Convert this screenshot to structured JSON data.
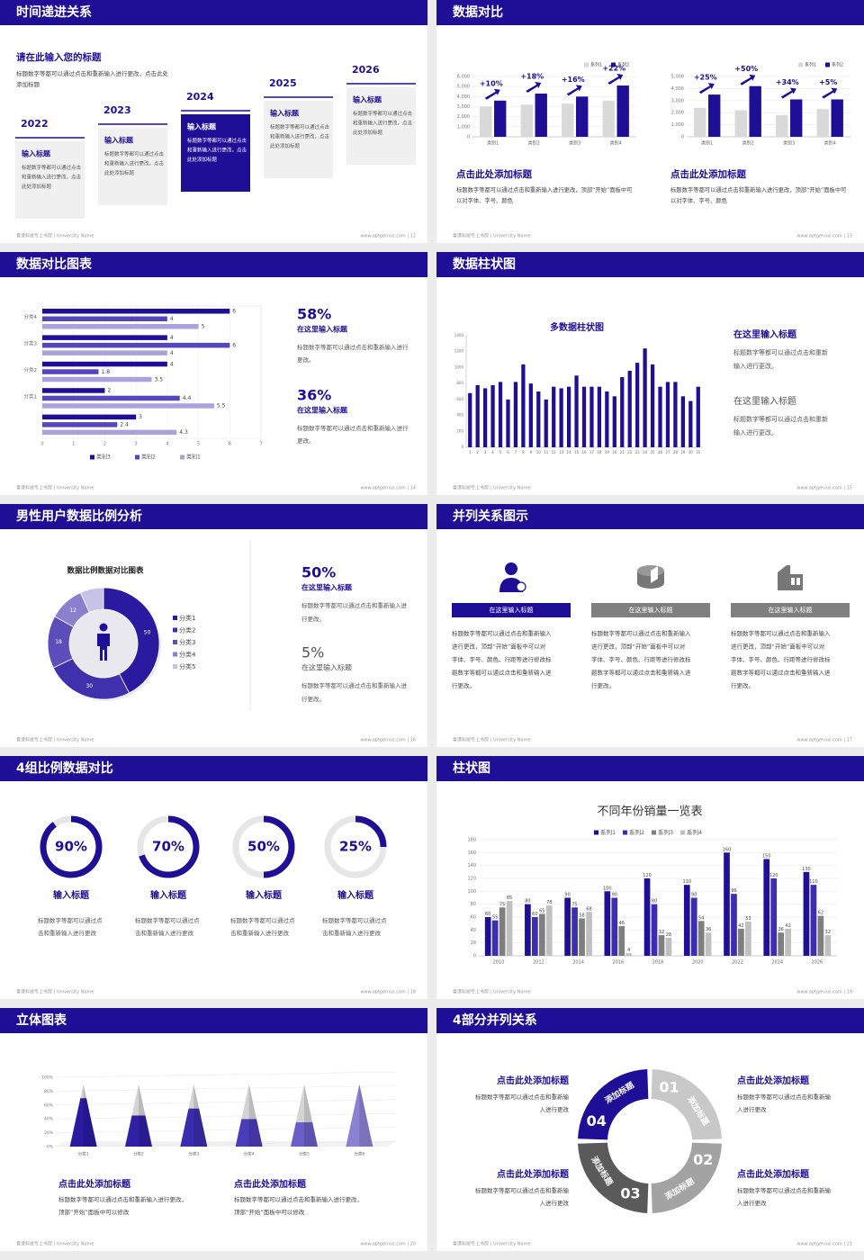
{
  "slides": [
    {
      "title": "时间递进关系",
      "heading": "请在此输入您的标题",
      "intro": "标题数字等都可以通过点击和重新输入进行更改，点击此处添加标题",
      "steps": [
        {
          "year": "2022",
          "label": "输入标题",
          "text": "标题数字等都可以通过点击和重新输入进行更改，点击此处添加标题"
        },
        {
          "year": "2023",
          "label": "输入标题",
          "text": "标题数字等都可以通过点击和重新输入进行更改，点击此处添加标题"
        },
        {
          "year": "2024",
          "label": "输入标题",
          "text": "标题数字等都可以通过点击和重新输入进行更改，点击此处添加标题"
        },
        {
          "year": "2025",
          "label": "输入标题",
          "text": "标题数字等都可以通过点击和重新输入进行更改，点击此处添加标题"
        },
        {
          "year": "2026",
          "label": "输入标题",
          "text": "标题数字等都可以通过点击和重新输入进行更改，点击此处添加标题"
        }
      ],
      "footer_left": "香港科技专上书院 | University Name",
      "footer_right": "www.aptgenius.com | 12"
    },
    {
      "title": "数据对比",
      "panels": [
        {
          "chart": {
            "type": "bar",
            "categories": [
              "类别1",
              "类别2",
              "类别3",
              "类别4"
            ],
            "series": [
              {
                "name": "系列1",
                "color": "#d9d9d9",
                "values": [
                  3000,
                  3200,
                  3300,
                  3600
                ]
              },
              {
                "name": "系列2",
                "color": "#1f0f96",
                "values": [
                  3600,
                  4300,
                  4000,
                  5100
                ]
              }
            ],
            "ylim": [
              0,
              6000
            ],
            "yticks": [
              0,
              {
                "value": 1000,
                "label": "1,000"
              },
              {
                "value": 2000,
                "label": "2,000"
              },
              {
                "value": 3000,
                "label": "3,000"
              },
              {
                "value": 4000,
                "label": "4,000"
              },
              {
                "value": 5000,
                "label": "5,000"
              },
              {
                "value": 6000,
                "label": "6,000"
              }
            ],
            "grid": true,
            "annotations": [
              "+10%",
              "+18%",
              "+16%",
              "+22%"
            ]
          },
          "heading": "点击此处添加标题",
          "text": "标题数字等都可以通过点击和重新输入进行更改，顶部“开始”面板中可以对字体、字号、颜色"
        },
        {
          "chart": {
            "type": "bar",
            "categories": [
              "类别1",
              "类别2",
              "类别3",
              "类别4"
            ],
            "series": [
              {
                "name": "系列1",
                "color": "#d9d9d9",
                "values": [
                  2400,
                  2200,
                  1800,
                  2300
                ]
              },
              {
                "name": "系列2",
                "color": "#1f0f96",
                "values": [
                  3500,
                  4200,
                  3100,
                  3100
                ]
              }
            ],
            "ylim": [
              0,
              5000
            ],
            "yticks": [
              0,
              {
                "value": 1000,
                "label": "1,000"
              },
              {
                "value": 2000,
                "label": "2,000"
              },
              {
                "value": 3000,
                "label": "3,000"
              },
              {
                "value": 4000,
                "label": "4,000"
              },
              {
                "value": 5000,
                "label": "5,000"
              }
            ],
            "grid": true,
            "annotations": [
              "+25%",
              "+50%",
              "+34%",
              "+5%"
            ]
          },
          "heading": "点击此处添加标题",
          "text": "标题数字等都可以通过点击和重新输入进行更改，顶部“开始”面板中可以对字体、字号、颜色"
        }
      ],
      "footer_left": "香港科技专上书院 | University Name",
      "footer_right": "www.aptgenius.com | 13"
    },
    {
      "title": "数据对比图表",
      "chart": {
        "type": "hbar",
        "categories": [
          "分类4",
          "分类3",
          "分类2",
          "分类1",
          null
        ],
        "series": [
          {
            "name": "类别3",
            "color": "#1f0f96",
            "values": [
              6,
              4,
              4,
              2,
              3
            ]
          },
          {
            "name": "类别2",
            "color": "#5446be",
            "values": [
              4,
              6,
              1.8,
              4.4,
              2.4
            ]
          },
          {
            "name": "类别1",
            "color": "#aaa2dc",
            "values": [
              5,
              4,
              3.5,
              5.5,
              4.3
            ]
          }
        ],
        "xlim": [
          0,
          7
        ],
        "xticks": [
          0,
          1,
          2,
          3,
          4,
          5,
          6,
          7
        ],
        "grid": true,
        "data_labels": true
      },
      "stats": [
        {
          "value": "58%",
          "label": "在这里输入标题",
          "text": "标题数字等都可以通过点击和重新输入进行更改。"
        },
        {
          "value": "36%",
          "label": "在这里输入标题",
          "text": "标题数字等都可以通过点击和重新输入进行更改。"
        }
      ],
      "footer_left": "香港科技专上书院 | University Name",
      "footer_right": "www.aptgenius.com | 14"
    },
    {
      "title": "数据柱状图",
      "chart": {
        "type": "bar",
        "title": "多数据柱状图",
        "color": "#1f0f96",
        "categories": [
          "1",
          "2",
          "3",
          "4",
          "5",
          "6",
          "7",
          "8",
          "9",
          "10",
          "11",
          "12",
          "13",
          "14",
          "15",
          "16",
          "17",
          "18",
          "19",
          "20",
          "21",
          "22",
          "23",
          "24",
          "25",
          "26",
          "27",
          "28",
          "29",
          "30",
          "31"
        ],
        "values": [
          680,
          780,
          740,
          780,
          820,
          600,
          820,
          1040,
          800,
          700,
          600,
          760,
          740,
          760,
          900,
          760,
          760,
          760,
          700,
          640,
          880,
          960,
          1060,
          1240,
          1040,
          760,
          820,
          820,
          640,
          580,
          760
        ],
        "ylim": [
          0,
          1400
        ],
        "yticks": [
          0,
          200,
          400,
          600,
          800,
          1000,
          1200,
          1400
        ],
        "grid": false
      },
      "blocks": [
        {
          "label": "在这里输入标题",
          "text": "标题数字等都可以通过点击和重新输入进行更改。"
        },
        {
          "label": "在这里输入标题",
          "text": "标题数字等都可以通过点击和重新输入进行更改。"
        }
      ],
      "footer_left": "香港科技专上书院 | University Name",
      "footer_right": "www.aptgenius.com | 15"
    },
    {
      "title": "男性用户数据比例分析",
      "chart": {
        "type": "donut",
        "title": "数据比例数据对比图表",
        "categories": [
          "分类1",
          "分类2",
          "分类3",
          "分类4",
          "分类5"
        ],
        "values": [
          50,
          30,
          18,
          12,
          8
        ],
        "colors": [
          "#2a1aa0",
          "#3f30ac",
          "#5b4dba",
          "#8a80cd",
          "#c6c1e7"
        ]
      },
      "stats": [
        {
          "value": "50%",
          "label": "在这里输入标题",
          "text": "标题数字等都可以通过点击和重新输入进行更改。"
        },
        {
          "value": "5%",
          "label": "在这里输入标题",
          "text": "标题数字等都可以通过点击和重新输入进行更改。"
        }
      ],
      "footer_left": "香港科技专上书院 | University Name",
      "footer_right": "www.aptgenius.com | 16"
    },
    {
      "title": "并列关系图示",
      "columns": [
        {
          "label": "在这里输入标题",
          "text": "标题数字等都可以通过点击和重新输入进行更改，顶部“开始”面板中可以对字体、字号、颜色、行距等进行修改标题数字等都可以通过点击和重新输入进行更改。"
        },
        {
          "label": "在这里输入标题",
          "text": "标题数字等都可以通过点击和重新输入进行更改，顶部“开始”面板中可以对字体、字号、颜色、行距等进行修改标题数字等都可以通过点击和重新输入进行更改。"
        },
        {
          "label": "在这里输入标题",
          "text": "标题数字等都可以通过点击和重新输入进行更改，顶部“开始”面板中可以对字体、字号、颜色、行距等进行修改标题数字等都可以通过点击和重新输入进行更改。"
        }
      ],
      "footer_left": "香港科技专上书院 | University Name",
      "footer_right": "www.aptgenius.com | 17"
    },
    {
      "title": "4组比例数据对比",
      "rings": [
        {
          "value": 90,
          "label": "90%",
          "title": "输入标题",
          "text": "标题数字等都可以通过点击和重新输入进行更改"
        },
        {
          "value": 70,
          "label": "70%",
          "title": "输入标题",
          "text": "标题数字等都可以通过点击和重新输入进行更改"
        },
        {
          "value": 50,
          "label": "50%",
          "title": "输入标题",
          "text": "标题数字等都可以通过点击和重新输入进行更改"
        },
        {
          "value": 25,
          "label": "25%",
          "title": "输入标题",
          "text": "标题数字等都可以通过点击和重新输入进行更改"
        }
      ],
      "footer_left": "香港科技专上书院 | University Name",
      "footer_right": "www.aptgenius.com | 18"
    },
    {
      "title": "柱状图",
      "chart": {
        "type": "bar",
        "title": "不同年份销量一览表",
        "categories": [
          "2010",
          "2012",
          "2014",
          "2016",
          "2018",
          "2020",
          "2022",
          "2024",
          "2026"
        ],
        "series": [
          {
            "name": "系列1",
            "color": "#1f0f96",
            "values": [
              60,
              80,
              90,
              100,
              120,
              110,
              160,
              150,
              130
            ]
          },
          {
            "name": "系列2",
            "color": "#3b2eb0",
            "values": [
              55,
              60,
              75,
              90,
              80,
              90,
              96,
              120,
              110
            ]
          },
          {
            "name": "系列3",
            "color": "#7f7f7f",
            "values": [
              75,
              65,
              58,
              46,
              32,
              54,
              42,
              36,
              62
            ]
          },
          {
            "name": "系列4",
            "color": "#c0c0c0",
            "values": [
              85,
              78,
              68,
              4,
              28,
              36,
              53,
              42,
              32
            ]
          }
        ],
        "ylim": [
          0,
          180
        ],
        "yticks": [
          0,
          20,
          40,
          60,
          80,
          100,
          120,
          140,
          160,
          180
        ],
        "grid": true,
        "data_labels": true
      },
      "footer_left": "香港科技专上书院 | University Name",
      "footer_right": "www.aptgenius.com | 19"
    },
    {
      "title": "立体图表",
      "chart": {
        "type": "cone",
        "categories": [
          "分类1",
          "分类2",
          "分类3",
          "分类4",
          "分类5",
          "分类6"
        ],
        "series": [
          {
            "values": [
              70,
              45,
              55,
              40,
              35,
              90
            ],
            "colors": [
              "#2a1aa0",
              "#2f20a6",
              "#3a2cae",
              "#4a3db8",
              "#6a5fc6",
              "#8c82d4"
            ]
          },
          {
            "values": [
              20,
              45,
              35,
              50,
              55,
              0
            ],
            "color": "#d4d4d4"
          }
        ],
        "ylim": [
          0,
          100
        ],
        "yticks": [
          {
            "value": 0,
            "label": "0%"
          },
          {
            "value": 20,
            "label": "20%"
          },
          {
            "value": 40,
            "label": "40%"
          },
          {
            "value": 60,
            "label": "60%"
          },
          {
            "value": 80,
            "label": "80%"
          },
          {
            "value": 100,
            "label": "100%"
          }
        ],
        "grid": true
      },
      "blocks": [
        {
          "label": "点击此处添加标题",
          "text": "标题数字等都可以通过点击和重新输入进行更改，顶部“开始”面板中可以修改"
        },
        {
          "label": "点击此处添加标题",
          "text": "标题数字等都可以通过点击和重新输入进行更改，顶部“开始”面板中可以修改"
        }
      ],
      "footer_left": "香港科技专上书院 | University Name",
      "footer_right": "www.aptgenius.com | 20"
    },
    {
      "title": "4部分并列关系",
      "parts": [
        {
          "num": "01",
          "label": "添加标题"
        },
        {
          "num": "02",
          "label": "添加标题"
        },
        {
          "num": "03",
          "label": "添加标题"
        },
        {
          "num": "04",
          "label": "添加标题"
        }
      ],
      "blocks": [
        {
          "label": "点击此处添加标题",
          "text": "标题数字等都可以通过点击和重新输入进行更改"
        },
        {
          "label": "点击此处添加标题",
          "text": "标题数字等都可以通过点击和重新输入进行更改"
        },
        {
          "label": "点击此处添加标题",
          "text": "标题数字等都可以通过点击和重新输入进行更改"
        },
        {
          "label": "点击此处添加标题",
          "text": "标题数字等都可以通过点击和重新输入进行更改"
        }
      ],
      "footer_left": "香港科技专上书院 | University Name",
      "footer_right": "www.aptgenius.com | 21"
    }
  ]
}
